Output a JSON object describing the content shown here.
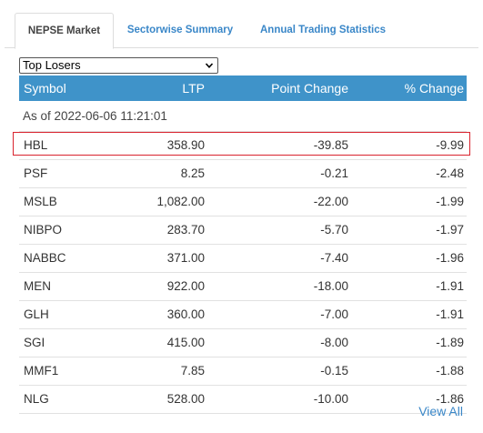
{
  "tabs": [
    {
      "label": "NEPSE Market",
      "active": true
    },
    {
      "label": "Sectorwise Summary",
      "active": false
    },
    {
      "label": "Annual Trading Statistics",
      "active": false
    }
  ],
  "filter": {
    "selected": "Top Losers"
  },
  "table": {
    "columns": [
      "Symbol",
      "LTP",
      "Point Change",
      "% Change"
    ],
    "as_of": "As of 2022-06-06 11:21:01",
    "rows": [
      {
        "symbol": "HBL",
        "ltp": "358.90",
        "point_change": "-39.85",
        "pct_change": "-9.99"
      },
      {
        "symbol": "PSF",
        "ltp": "8.25",
        "point_change": "-0.21",
        "pct_change": "-2.48"
      },
      {
        "symbol": "MSLB",
        "ltp": "1,082.00",
        "point_change": "-22.00",
        "pct_change": "-1.99"
      },
      {
        "symbol": "NIBPO",
        "ltp": "283.70",
        "point_change": "-5.70",
        "pct_change": "-1.97"
      },
      {
        "symbol": "NABBC",
        "ltp": "371.00",
        "point_change": "-7.40",
        "pct_change": "-1.96"
      },
      {
        "symbol": "MEN",
        "ltp": "922.00",
        "point_change": "-18.00",
        "pct_change": "-1.91"
      },
      {
        "symbol": "GLH",
        "ltp": "360.00",
        "point_change": "-7.00",
        "pct_change": "-1.91"
      },
      {
        "symbol": "SGI",
        "ltp": "415.00",
        "point_change": "-8.00",
        "pct_change": "-1.89"
      },
      {
        "symbol": "MMF1",
        "ltp": "7.85",
        "point_change": "-0.15",
        "pct_change": "-1.88"
      },
      {
        "symbol": "NLG",
        "ltp": "528.00",
        "point_change": "-10.00",
        "pct_change": "-1.86"
      }
    ]
  },
  "footer": {
    "view_all": "View All"
  },
  "colors": {
    "header_bg": "#3f93c9",
    "link": "#3a87c8",
    "highlight": "#d9232e"
  },
  "icons": {
    "select": "chevron-down-icon"
  }
}
